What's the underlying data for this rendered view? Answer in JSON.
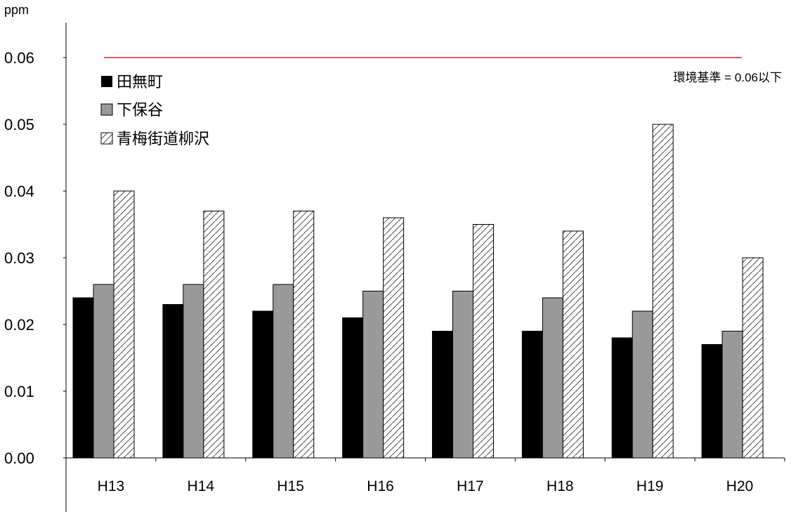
{
  "chart_data": {
    "type": "bar",
    "ylabel": "ppm",
    "xlabel": "",
    "ylim": [
      0,
      0.06
    ],
    "ytick_labels": [
      "0.00",
      "0.01",
      "0.02",
      "0.03",
      "0.04",
      "0.05",
      "0.06"
    ],
    "ytick_values": [
      0,
      0.01,
      0.02,
      0.03,
      0.04,
      0.05,
      0.06
    ],
    "categories": [
      "H13",
      "H14",
      "H15",
      "H16",
      "H17",
      "H18",
      "H19",
      "H20"
    ],
    "series": [
      {
        "name": "田無町",
        "fill": "solid-black",
        "values": [
          0.024,
          0.023,
          0.022,
          0.021,
          0.019,
          0.019,
          0.018,
          0.017
        ]
      },
      {
        "name": "下保谷",
        "fill": "solid-gray",
        "values": [
          0.026,
          0.026,
          0.026,
          0.025,
          0.025,
          0.024,
          0.022,
          0.019
        ]
      },
      {
        "name": "青梅街道柳沢",
        "fill": "diagonal-hatch",
        "values": [
          0.04,
          0.037,
          0.037,
          0.036,
          0.035,
          0.034,
          0.05,
          0.03
        ]
      }
    ],
    "reference_line": {
      "value": 0.06,
      "label": "環境基準 = 0.06以下",
      "color": "#e02020"
    },
    "legend": {
      "position": "top-left"
    },
    "grid": false
  },
  "colors": {
    "series1": "#000000",
    "series2": "#999999",
    "series3_bg": "#ffffff",
    "hatch": "#555555",
    "reference": "#e02020"
  }
}
